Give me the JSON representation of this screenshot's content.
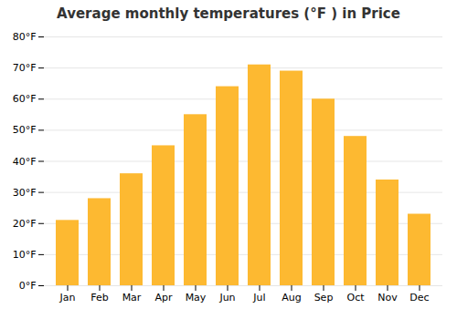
{
  "chart_data": {
    "type": "bar",
    "title": "Average monthly temperatures (°F ) in Price",
    "categories": [
      "Jan",
      "Feb",
      "Mar",
      "Apr",
      "May",
      "Jun",
      "Jul",
      "Aug",
      "Sep",
      "Oct",
      "Nov",
      "Dec"
    ],
    "values": [
      21,
      28,
      36,
      45,
      55,
      64,
      71,
      69,
      60,
      48,
      34,
      23
    ],
    "color": "#FDB931",
    "ylim": [
      0,
      80
    ],
    "yticks": [
      {
        "value": 0,
        "label": "0°F"
      },
      {
        "value": 10,
        "label": "10°F"
      },
      {
        "value": 20,
        "label": "20°F"
      },
      {
        "value": 30,
        "label": "30°F"
      },
      {
        "value": 40,
        "label": "40°F"
      },
      {
        "value": 50,
        "label": "50°F"
      },
      {
        "value": 60,
        "label": "60°F"
      },
      {
        "value": 70,
        "label": "70°F"
      },
      {
        "value": 80,
        "label": "80°F"
      }
    ],
    "grid": true
  }
}
